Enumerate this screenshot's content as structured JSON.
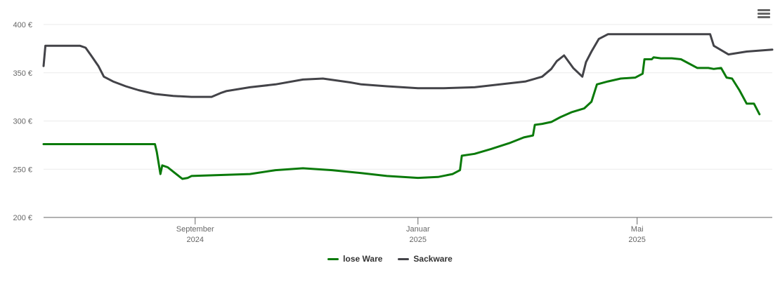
{
  "chart_data": {
    "type": "line",
    "title": "",
    "xlabel": "",
    "ylabel": "",
    "ylim": [
      200,
      400
    ],
    "xlim": [
      "2024-06-10",
      "2025-07-14"
    ],
    "y_ticks": [
      {
        "value": 200,
        "label": "200 €"
      },
      {
        "value": 250,
        "label": "250 €"
      },
      {
        "value": 300,
        "label": "300 €"
      },
      {
        "value": 350,
        "label": "350 €"
      },
      {
        "value": 400,
        "label": "400 €"
      }
    ],
    "x_ticks": [
      {
        "date": "2024-09-01",
        "line1": "September",
        "line2": "2024"
      },
      {
        "date": "2025-01-01",
        "line1": "Januar",
        "line2": "2025"
      },
      {
        "date": "2025-05-01",
        "line1": "Mai",
        "line2": "2025"
      }
    ],
    "grid": true,
    "legend_position": "bottom-center",
    "series": [
      {
        "name": "lose Ware",
        "color": "#0a7a0a",
        "points": [
          [
            "2024-06-10",
            276
          ],
          [
            "2024-06-30",
            276
          ],
          [
            "2024-07-20",
            276
          ],
          [
            "2024-08-10",
            276
          ],
          [
            "2024-08-11",
            268
          ],
          [
            "2024-08-13",
            245
          ],
          [
            "2024-08-14",
            254
          ],
          [
            "2024-08-17",
            252
          ],
          [
            "2024-08-21",
            246
          ],
          [
            "2024-08-25",
            240
          ],
          [
            "2024-08-28",
            241
          ],
          [
            "2024-08-30",
            243
          ],
          [
            "2024-09-15",
            244
          ],
          [
            "2024-10-01",
            245
          ],
          [
            "2024-10-15",
            249
          ],
          [
            "2024-10-30",
            251
          ],
          [
            "2024-11-15",
            249
          ],
          [
            "2024-12-01",
            246
          ],
          [
            "2024-12-15",
            243
          ],
          [
            "2025-01-01",
            241
          ],
          [
            "2025-01-12",
            242
          ],
          [
            "2025-01-20",
            245
          ],
          [
            "2025-01-24",
            249
          ],
          [
            "2025-01-25",
            264
          ],
          [
            "2025-02-01",
            266
          ],
          [
            "2025-02-10",
            271
          ],
          [
            "2025-02-20",
            277
          ],
          [
            "2025-02-28",
            283
          ],
          [
            "2025-03-05",
            285
          ],
          [
            "2025-03-06",
            296
          ],
          [
            "2025-03-10",
            297
          ],
          [
            "2025-03-15",
            299
          ],
          [
            "2025-03-20",
            304
          ],
          [
            "2025-03-26",
            309
          ],
          [
            "2025-04-02",
            313
          ],
          [
            "2025-04-06",
            320
          ],
          [
            "2025-04-09",
            338
          ],
          [
            "2025-04-15",
            341
          ],
          [
            "2025-04-22",
            344
          ],
          [
            "2025-04-30",
            345
          ],
          [
            "2025-05-04",
            349
          ],
          [
            "2025-05-05",
            364
          ],
          [
            "2025-05-09",
            364
          ],
          [
            "2025-05-10",
            366
          ],
          [
            "2025-05-14",
            365
          ],
          [
            "2025-05-20",
            365
          ],
          [
            "2025-05-25",
            364
          ],
          [
            "2025-05-29",
            360
          ],
          [
            "2025-06-03",
            355
          ],
          [
            "2025-06-09",
            355
          ],
          [
            "2025-06-12",
            354
          ],
          [
            "2025-06-16",
            355
          ],
          [
            "2025-06-19",
            345
          ],
          [
            "2025-06-22",
            344
          ],
          [
            "2025-06-26",
            332
          ],
          [
            "2025-06-30",
            318
          ],
          [
            "2025-07-04",
            318
          ],
          [
            "2025-07-07",
            307
          ]
        ]
      },
      {
        "name": "Sackware",
        "color": "#434348",
        "points": [
          [
            "2024-06-10",
            357
          ],
          [
            "2024-06-11",
            378
          ],
          [
            "2024-06-30",
            378
          ],
          [
            "2024-07-03",
            376
          ],
          [
            "2024-07-06",
            368
          ],
          [
            "2024-07-10",
            357
          ],
          [
            "2024-07-13",
            346
          ],
          [
            "2024-07-18",
            341
          ],
          [
            "2024-07-25",
            336
          ],
          [
            "2024-08-01",
            332
          ],
          [
            "2024-08-10",
            328
          ],
          [
            "2024-08-20",
            326
          ],
          [
            "2024-08-30",
            325
          ],
          [
            "2024-09-10",
            325
          ],
          [
            "2024-09-15",
            329
          ],
          [
            "2024-09-18",
            331
          ],
          [
            "2024-10-01",
            335
          ],
          [
            "2024-10-15",
            338
          ],
          [
            "2024-10-30",
            343
          ],
          [
            "2024-11-10",
            344
          ],
          [
            "2024-11-25",
            340
          ],
          [
            "2024-12-01",
            338
          ],
          [
            "2024-12-15",
            336
          ],
          [
            "2025-01-01",
            334
          ],
          [
            "2025-01-15",
            334
          ],
          [
            "2025-02-01",
            335
          ],
          [
            "2025-02-15",
            338
          ],
          [
            "2025-03-01",
            341
          ],
          [
            "2025-03-10",
            346
          ],
          [
            "2025-03-15",
            354
          ],
          [
            "2025-03-18",
            362
          ],
          [
            "2025-03-22",
            368
          ],
          [
            "2025-03-27",
            355
          ],
          [
            "2025-04-01",
            346
          ],
          [
            "2025-04-03",
            361
          ],
          [
            "2025-04-06",
            372
          ],
          [
            "2025-04-10",
            385
          ],
          [
            "2025-04-15",
            390
          ],
          [
            "2025-05-01",
            390
          ],
          [
            "2025-05-20",
            390
          ],
          [
            "2025-06-10",
            390
          ],
          [
            "2025-06-12",
            378
          ],
          [
            "2025-06-20",
            369
          ],
          [
            "2025-06-30",
            372
          ],
          [
            "2025-07-14",
            374
          ]
        ]
      }
    ]
  },
  "legend": [
    {
      "label": "lose Ware",
      "color": "#0a7a0a"
    },
    {
      "label": "Sackware",
      "color": "#434348"
    }
  ],
  "menu": {
    "icon": "hamburger-menu-icon"
  }
}
